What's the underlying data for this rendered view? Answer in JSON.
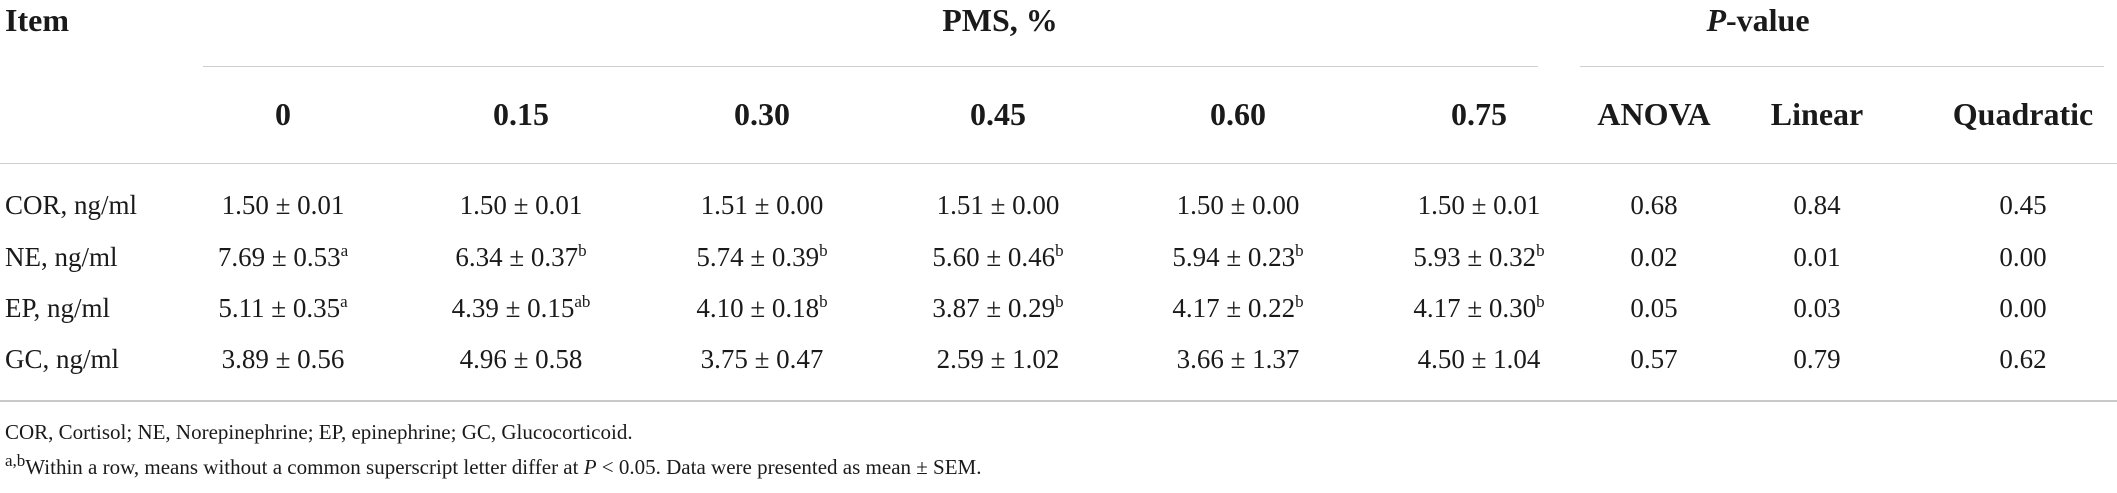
{
  "table": {
    "header_item": "Item",
    "header_pms": "PMS, %",
    "header_pvalue_italic": "P",
    "header_pvalue_rest": "-value",
    "columns": [
      "0",
      "0.15",
      "0.30",
      "0.45",
      "0.60",
      "0.75",
      "ANOVA",
      "Linear",
      "Quadratic"
    ],
    "rows": [
      {
        "label": "COR, ng/ml",
        "cells": [
          {
            "v": "1.50 ± 0.01",
            "sup": ""
          },
          {
            "v": "1.50 ± 0.01",
            "sup": ""
          },
          {
            "v": "1.51 ± 0.00",
            "sup": ""
          },
          {
            "v": "1.51 ± 0.00",
            "sup": ""
          },
          {
            "v": "1.50 ± 0.00",
            "sup": ""
          },
          {
            "v": "1.50 ± 0.01",
            "sup": ""
          },
          {
            "v": "0.68",
            "sup": ""
          },
          {
            "v": "0.84",
            "sup": ""
          },
          {
            "v": "0.45",
            "sup": ""
          }
        ]
      },
      {
        "label": "NE, ng/ml",
        "cells": [
          {
            "v": "7.69 ± 0.53",
            "sup": "a"
          },
          {
            "v": "6.34 ± 0.37",
            "sup": "b"
          },
          {
            "v": "5.74 ± 0.39",
            "sup": "b"
          },
          {
            "v": "5.60 ± 0.46",
            "sup": "b"
          },
          {
            "v": "5.94 ± 0.23",
            "sup": "b"
          },
          {
            "v": "5.93 ± 0.32",
            "sup": "b"
          },
          {
            "v": "0.02",
            "sup": ""
          },
          {
            "v": "0.01",
            "sup": ""
          },
          {
            "v": "0.00",
            "sup": ""
          }
        ]
      },
      {
        "label": "EP, ng/ml",
        "cells": [
          {
            "v": "5.11 ± 0.35",
            "sup": "a"
          },
          {
            "v": "4.39 ± 0.15",
            "sup": "ab"
          },
          {
            "v": "4.10 ± 0.18",
            "sup": "b"
          },
          {
            "v": "3.87 ± 0.29",
            "sup": "b"
          },
          {
            "v": "4.17 ± 0.22",
            "sup": "b"
          },
          {
            "v": "4.17 ± 0.30",
            "sup": "b"
          },
          {
            "v": "0.05",
            "sup": ""
          },
          {
            "v": "0.03",
            "sup": ""
          },
          {
            "v": "0.00",
            "sup": ""
          }
        ]
      },
      {
        "label": "GC, ng/ml",
        "cells": [
          {
            "v": "3.89 ± 0.56",
            "sup": ""
          },
          {
            "v": "4.96 ± 0.58",
            "sup": ""
          },
          {
            "v": "3.75 ± 0.47",
            "sup": ""
          },
          {
            "v": "2.59 ± 1.02",
            "sup": ""
          },
          {
            "v": "3.66 ± 1.37",
            "sup": ""
          },
          {
            "v": "4.50 ± 1.04",
            "sup": ""
          },
          {
            "v": "0.57",
            "sup": ""
          },
          {
            "v": "0.79",
            "sup": ""
          },
          {
            "v": "0.62",
            "sup": ""
          }
        ]
      }
    ]
  },
  "footnotes": {
    "abbreviations": "COR, Cortisol; NE, Norepinephrine; EP, epinephrine; GC, Glucocorticoid.",
    "sig_sup": "a,b",
    "sig_text_before": "Within a row, means without a common superscript letter differ at ",
    "sig_p": "P",
    "sig_text_after": " < 0.05. Data were presented as mean ± SEM."
  }
}
